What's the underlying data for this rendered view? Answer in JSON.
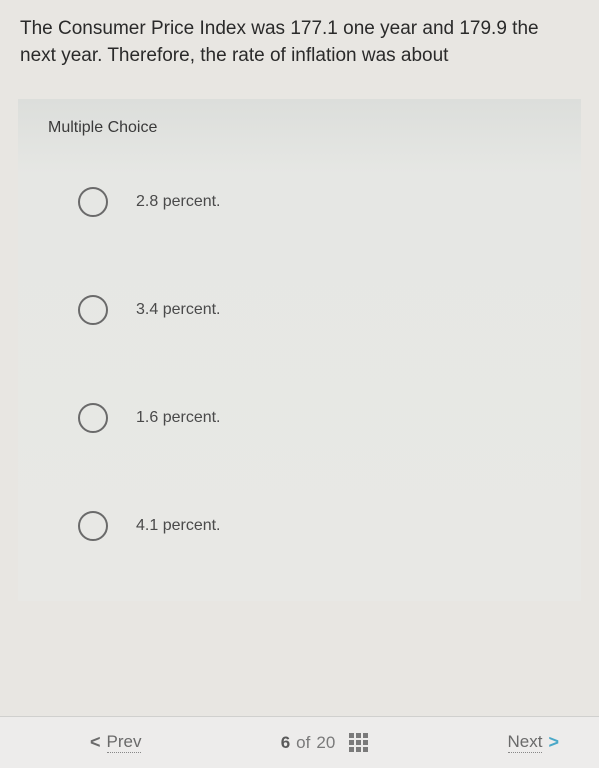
{
  "question": {
    "text": "The Consumer Price Index was 177.1 one year and 179.9 the next year. Therefore, the rate of inflation was about"
  },
  "mc": {
    "heading": "Multiple Choice",
    "options": [
      {
        "label": "2.8 percent."
      },
      {
        "label": "3.4 percent."
      },
      {
        "label": "1.6 percent."
      },
      {
        "label": "4.1 percent."
      }
    ]
  },
  "nav": {
    "prev_label": "Prev",
    "next_label": "Next",
    "current": "6",
    "of": "of",
    "total": "20"
  }
}
